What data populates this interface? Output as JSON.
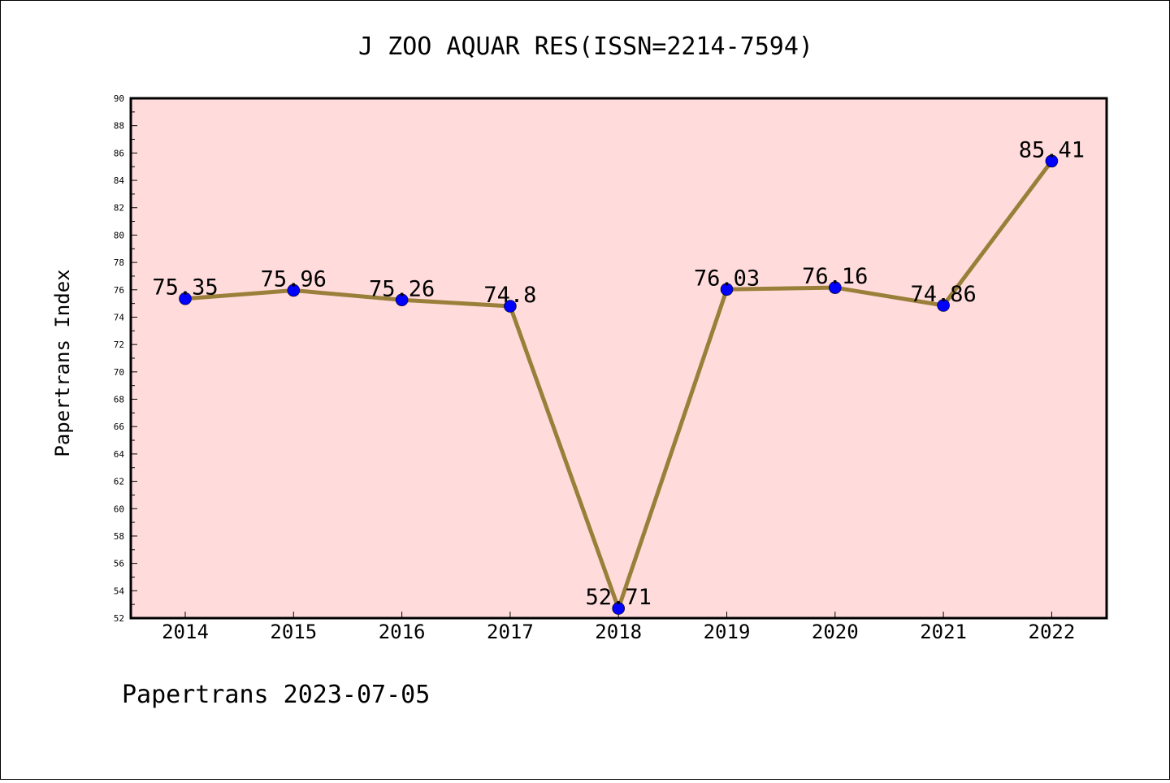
{
  "chart_data": {
    "type": "line",
    "title": "J ZOO AQUAR RES(ISSN=2214-7594)",
    "xlabel": "",
    "ylabel": "Papertrans Index",
    "footer": "Papertrans 2023-07-05",
    "categories": [
      "2014",
      "2015",
      "2016",
      "2017",
      "2018",
      "2019",
      "2020",
      "2021",
      "2022"
    ],
    "series": [
      {
        "values": [
          75.35,
          75.96,
          75.26,
          74.8,
          52.71,
          76.03,
          76.16,
          74.86,
          85.41
        ],
        "labels": [
          "75.35",
          "75.96",
          "75.26",
          "74.8",
          "52.71",
          "76.03",
          "76.16",
          "74.86",
          "85.41"
        ]
      }
    ],
    "ylim": [
      52,
      90
    ],
    "yticks": [
      "52",
      "54",
      "56",
      "58",
      "60",
      "62",
      "64",
      "66",
      "68",
      "70",
      "72",
      "74",
      "76",
      "78",
      "80",
      "82",
      "84",
      "86",
      "88",
      "90"
    ],
    "grid": false,
    "legend": "none",
    "colors": {
      "plot_background": "#ffdcdb",
      "line": "#9a7f3a",
      "marker": "#0000ff"
    }
  }
}
